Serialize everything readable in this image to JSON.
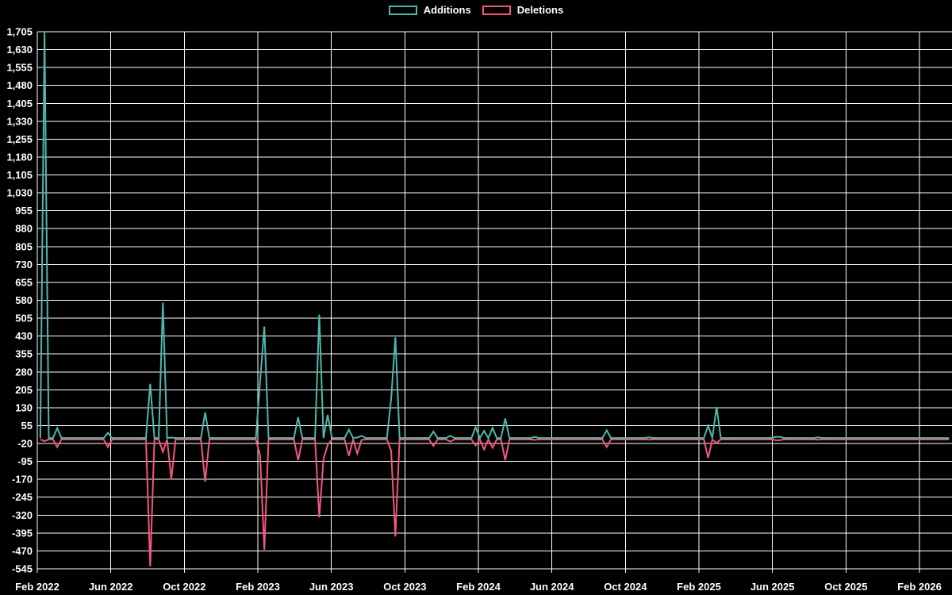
{
  "chart_data": {
    "type": "line",
    "title": "",
    "background_color": "#000000",
    "grid_color": "#ffffff",
    "text_color": "#ffffff",
    "grid": true,
    "legend_position": "top-center",
    "legend": [
      {
        "label": "Additions",
        "color": "#4db8ae"
      },
      {
        "label": "Deletions",
        "color": "#f4567e"
      }
    ],
    "x_axis": {
      "tick_labels": [
        "Feb 2022",
        "Jun 2022",
        "Oct 2022",
        "Feb 2023",
        "Jun 2023",
        "Oct 2023",
        "Feb 2024",
        "Jun 2024",
        "Oct 2024",
        "Feb 2025",
        "Jun 2025",
        "Oct 2025",
        "Feb 2026"
      ],
      "tick_interval_months": 4,
      "first_tick_date": "2022-02-01",
      "last_tick_date": "2026-02-01"
    },
    "y_axis": {
      "tick_labels": [
        "1,705",
        "1,630",
        "1,555",
        "1,480",
        "1,405",
        "1,330",
        "1,255",
        "1,180",
        "1,105",
        "1,030",
        "955",
        "880",
        "805",
        "730",
        "655",
        "580",
        "505",
        "430",
        "355",
        "280",
        "205",
        "130",
        "55",
        "-20",
        "-95",
        "-170",
        "-245",
        "-320",
        "-395",
        "-470",
        "-545"
      ],
      "max": 1705,
      "min": -545,
      "step": 75
    },
    "series_resolution": "weekly",
    "data_start": "2022-02-06",
    "data_end": "2026-03-22",
    "baseline": {
      "additions": 3,
      "deletions": -3
    },
    "events": [
      {
        "date": "2022-02-13",
        "additions": 1705,
        "deletions": -10
      },
      {
        "date": "2022-03-06",
        "additions": 45,
        "deletions": -35
      },
      {
        "date": "2022-05-29",
        "additions": 25,
        "deletions": -35
      },
      {
        "date": "2022-08-07",
        "additions": 230,
        "deletions": -535
      },
      {
        "date": "2022-08-28",
        "additions": 570,
        "deletions": -55
      },
      {
        "date": "2022-09-11",
        "additions": 5,
        "deletions": -170
      },
      {
        "date": "2022-11-06",
        "additions": 110,
        "deletions": -180
      },
      {
        "date": "2023-02-05",
        "additions": 240,
        "deletions": -70
      },
      {
        "date": "2023-02-12",
        "additions": 470,
        "deletions": -465
      },
      {
        "date": "2023-04-09",
        "additions": 90,
        "deletions": -90
      },
      {
        "date": "2023-05-14",
        "additions": 520,
        "deletions": -330
      },
      {
        "date": "2023-05-21",
        "additions": 3,
        "deletions": -85
      },
      {
        "date": "2023-05-28",
        "additions": 100,
        "deletions": -25
      },
      {
        "date": "2023-07-02",
        "additions": 38,
        "deletions": -72
      },
      {
        "date": "2023-07-16",
        "additions": 5,
        "deletions": -62
      },
      {
        "date": "2023-07-23",
        "additions": 12,
        "deletions": -5
      },
      {
        "date": "2023-09-10",
        "additions": 165,
        "deletions": -50
      },
      {
        "date": "2023-09-17",
        "additions": 425,
        "deletions": -410
      },
      {
        "date": "2023-11-19",
        "additions": 30,
        "deletions": -30
      },
      {
        "date": "2023-12-17",
        "additions": 12,
        "deletions": -12
      },
      {
        "date": "2024-01-28",
        "additions": 48,
        "deletions": -28
      },
      {
        "date": "2024-02-11",
        "additions": 33,
        "deletions": -45
      },
      {
        "date": "2024-02-25",
        "additions": 45,
        "deletions": -38
      },
      {
        "date": "2024-03-17",
        "additions": 85,
        "deletions": -90
      },
      {
        "date": "2024-05-05",
        "additions": 8,
        "deletions": -5
      },
      {
        "date": "2024-09-01",
        "additions": 35,
        "deletions": -35
      },
      {
        "date": "2024-11-10",
        "additions": 6,
        "deletions": -4
      },
      {
        "date": "2025-02-16",
        "additions": 55,
        "deletions": -80
      },
      {
        "date": "2025-03-02",
        "additions": 133,
        "deletions": -18
      },
      {
        "date": "2025-06-08",
        "additions": 8,
        "deletions": -6
      },
      {
        "date": "2025-06-15",
        "additions": 8,
        "deletions": -6
      },
      {
        "date": "2025-08-17",
        "additions": 6,
        "deletions": -4
      }
    ]
  }
}
